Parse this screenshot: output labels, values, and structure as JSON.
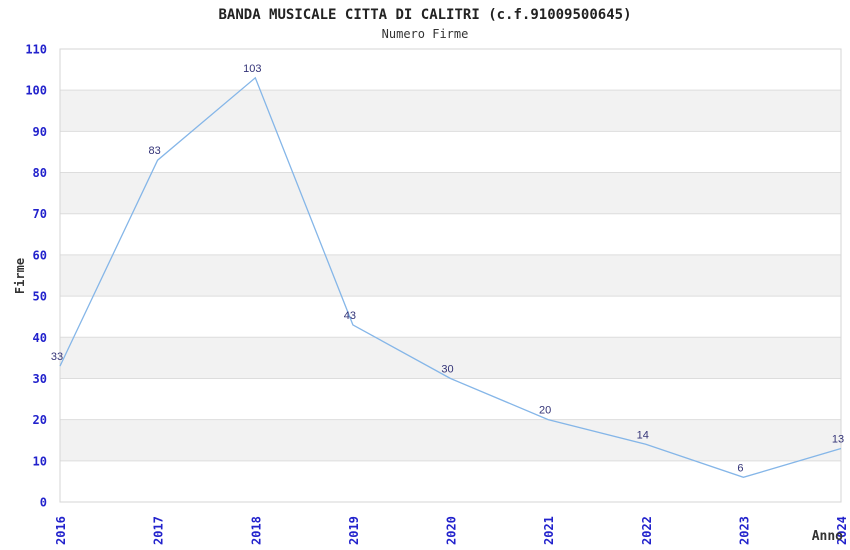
{
  "chart_data": {
    "type": "line",
    "title": "BANDA MUSICALE CITTA DI CALITRI (c.f.91009500645)",
    "subtitle": "Numero Firme",
    "xlabel": "Anno",
    "ylabel": "Firme",
    "categories": [
      "2016",
      "2017",
      "2018",
      "2019",
      "2020",
      "2021",
      "2022",
      "2023",
      "2024"
    ],
    "values": [
      33,
      83,
      103,
      43,
      30,
      20,
      14,
      6,
      13
    ],
    "ylim": [
      0,
      110
    ],
    "ytick_step": 10,
    "yticks": [
      0,
      10,
      20,
      30,
      40,
      50,
      60,
      70,
      80,
      90,
      100,
      110
    ],
    "grid": true,
    "legend": "none",
    "band_pattern": "alternating horizontal bands every 10 units, gray on odd bands",
    "colors": {
      "line": "#85B6E8",
      "data_label": "#333377",
      "tick_label": "#2222CC",
      "band": "#F2F2F2",
      "gridline": "#DDDDDD",
      "border": "#D5D5D5",
      "title": "#222222",
      "background": "#FFFFFF"
    }
  }
}
